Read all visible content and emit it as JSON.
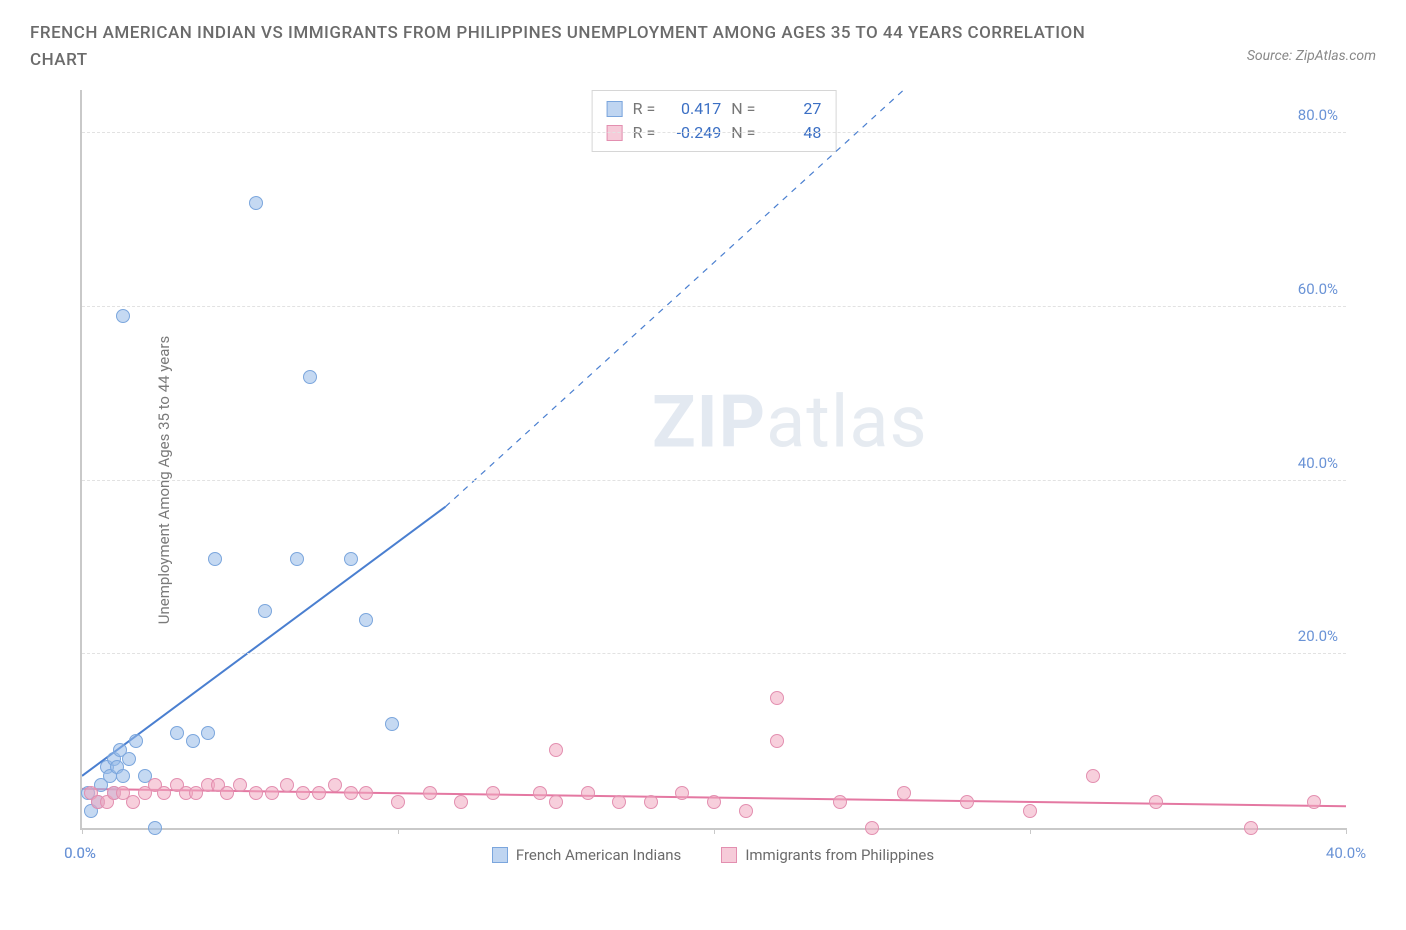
{
  "title": "FRENCH AMERICAN INDIAN VS IMMIGRANTS FROM PHILIPPINES UNEMPLOYMENT AMONG AGES 35 TO 44 YEARS CORRELATION CHART",
  "source_label": "Source: ZipAtlas.com",
  "ylabel": "Unemployment Among Ages 35 to 44 years",
  "watermark_a": "ZIP",
  "watermark_b": "atlas",
  "chart": {
    "type": "scatter",
    "background_color": "#ffffff",
    "grid_color": "#e2e2e2",
    "axis_color": "#c9c9c9",
    "tick_label_color": "#6a93d6",
    "xlim": [
      0,
      40
    ],
    "ylim": [
      0,
      85
    ],
    "xticks": [
      0,
      10,
      20,
      30,
      40
    ],
    "xtick_labels": [
      "0.0%",
      "",
      "",
      "",
      "40.0%"
    ],
    "yticks": [
      20,
      40,
      60,
      80
    ],
    "ytick_labels": [
      "20.0%",
      "40.0%",
      "60.0%",
      "80.0%"
    ],
    "series": [
      {
        "name": "French American Indians",
        "color_fill": "rgba(149,185,232,0.55)",
        "color_stroke": "#7ba6dd",
        "marker": "circle",
        "marker_size": 14,
        "r": 0.417,
        "n": 27,
        "trend": {
          "solid": {
            "x1": 0,
            "y1": 6,
            "x2": 11.5,
            "y2": 37
          },
          "dashed": {
            "x1": 11.5,
            "y1": 37,
            "x2": 26,
            "y2": 85
          },
          "color": "#4a7fd0",
          "width": 2
        },
        "points": [
          [
            0.2,
            4
          ],
          [
            0.3,
            2
          ],
          [
            0.5,
            3
          ],
          [
            0.6,
            5
          ],
          [
            0.8,
            7
          ],
          [
            0.9,
            6
          ],
          [
            1.0,
            8
          ],
          [
            1.1,
            7
          ],
          [
            1.2,
            9
          ],
          [
            1.3,
            6
          ],
          [
            1.5,
            8
          ],
          [
            1.7,
            10
          ],
          [
            2.0,
            6
          ],
          [
            2.3,
            0
          ],
          [
            3.0,
            11
          ],
          [
            3.5,
            10
          ],
          [
            4.2,
            31
          ],
          [
            5.5,
            72
          ],
          [
            5.8,
            25
          ],
          [
            6.8,
            31
          ],
          [
            7.2,
            52
          ],
          [
            8.5,
            31
          ],
          [
            9.0,
            24
          ],
          [
            9.8,
            12
          ],
          [
            1.3,
            59
          ],
          [
            4.0,
            11
          ],
          [
            1.0,
            4
          ]
        ]
      },
      {
        "name": "Immigrants from Philippines",
        "color_fill": "rgba(240,168,192,0.55)",
        "color_stroke": "#e38fb0",
        "marker": "circle",
        "marker_size": 14,
        "r": -0.249,
        "n": 48,
        "trend": {
          "solid": {
            "x1": 0,
            "y1": 4.5,
            "x2": 40,
            "y2": 2.5
          },
          "color": "#e478a2",
          "width": 2
        },
        "points": [
          [
            0.3,
            4
          ],
          [
            0.5,
            3
          ],
          [
            0.8,
            3
          ],
          [
            1.0,
            4
          ],
          [
            1.3,
            4
          ],
          [
            1.6,
            3
          ],
          [
            2.0,
            4
          ],
          [
            2.3,
            5
          ],
          [
            2.6,
            4
          ],
          [
            3.0,
            5
          ],
          [
            3.3,
            4
          ],
          [
            3.6,
            4
          ],
          [
            4.0,
            5
          ],
          [
            4.3,
            5
          ],
          [
            4.6,
            4
          ],
          [
            5.0,
            5
          ],
          [
            5.5,
            4
          ],
          [
            6.0,
            4
          ],
          [
            6.5,
            5
          ],
          [
            7.0,
            4
          ],
          [
            7.5,
            4
          ],
          [
            8.0,
            5
          ],
          [
            8.5,
            4
          ],
          [
            9.0,
            4
          ],
          [
            10.0,
            3
          ],
          [
            11.0,
            4
          ],
          [
            12.0,
            3
          ],
          [
            13.0,
            4
          ],
          [
            14.5,
            4
          ],
          [
            15.0,
            9
          ],
          [
            15.0,
            3
          ],
          [
            16.0,
            4
          ],
          [
            17.0,
            3
          ],
          [
            18.0,
            3
          ],
          [
            19.0,
            4
          ],
          [
            20.0,
            3
          ],
          [
            21.0,
            2
          ],
          [
            22.0,
            15
          ],
          [
            22.0,
            10
          ],
          [
            24.0,
            3
          ],
          [
            25.0,
            0
          ],
          [
            26.0,
            4
          ],
          [
            28.0,
            3
          ],
          [
            30.0,
            2
          ],
          [
            32.0,
            6
          ],
          [
            34.0,
            3
          ],
          [
            37.0,
            0
          ],
          [
            39.0,
            3
          ]
        ]
      }
    ]
  },
  "stats_box": {
    "r_label": "R =",
    "n_label": "N =",
    "rows": [
      {
        "sw": "blue",
        "r": "0.417",
        "n": "27"
      },
      {
        "sw": "pink",
        "r": "-0.249",
        "n": "48"
      }
    ]
  },
  "legend": {
    "items": [
      {
        "sw": "blue",
        "label": "French American Indians"
      },
      {
        "sw": "pink",
        "label": "Immigrants from Philippines"
      }
    ]
  }
}
